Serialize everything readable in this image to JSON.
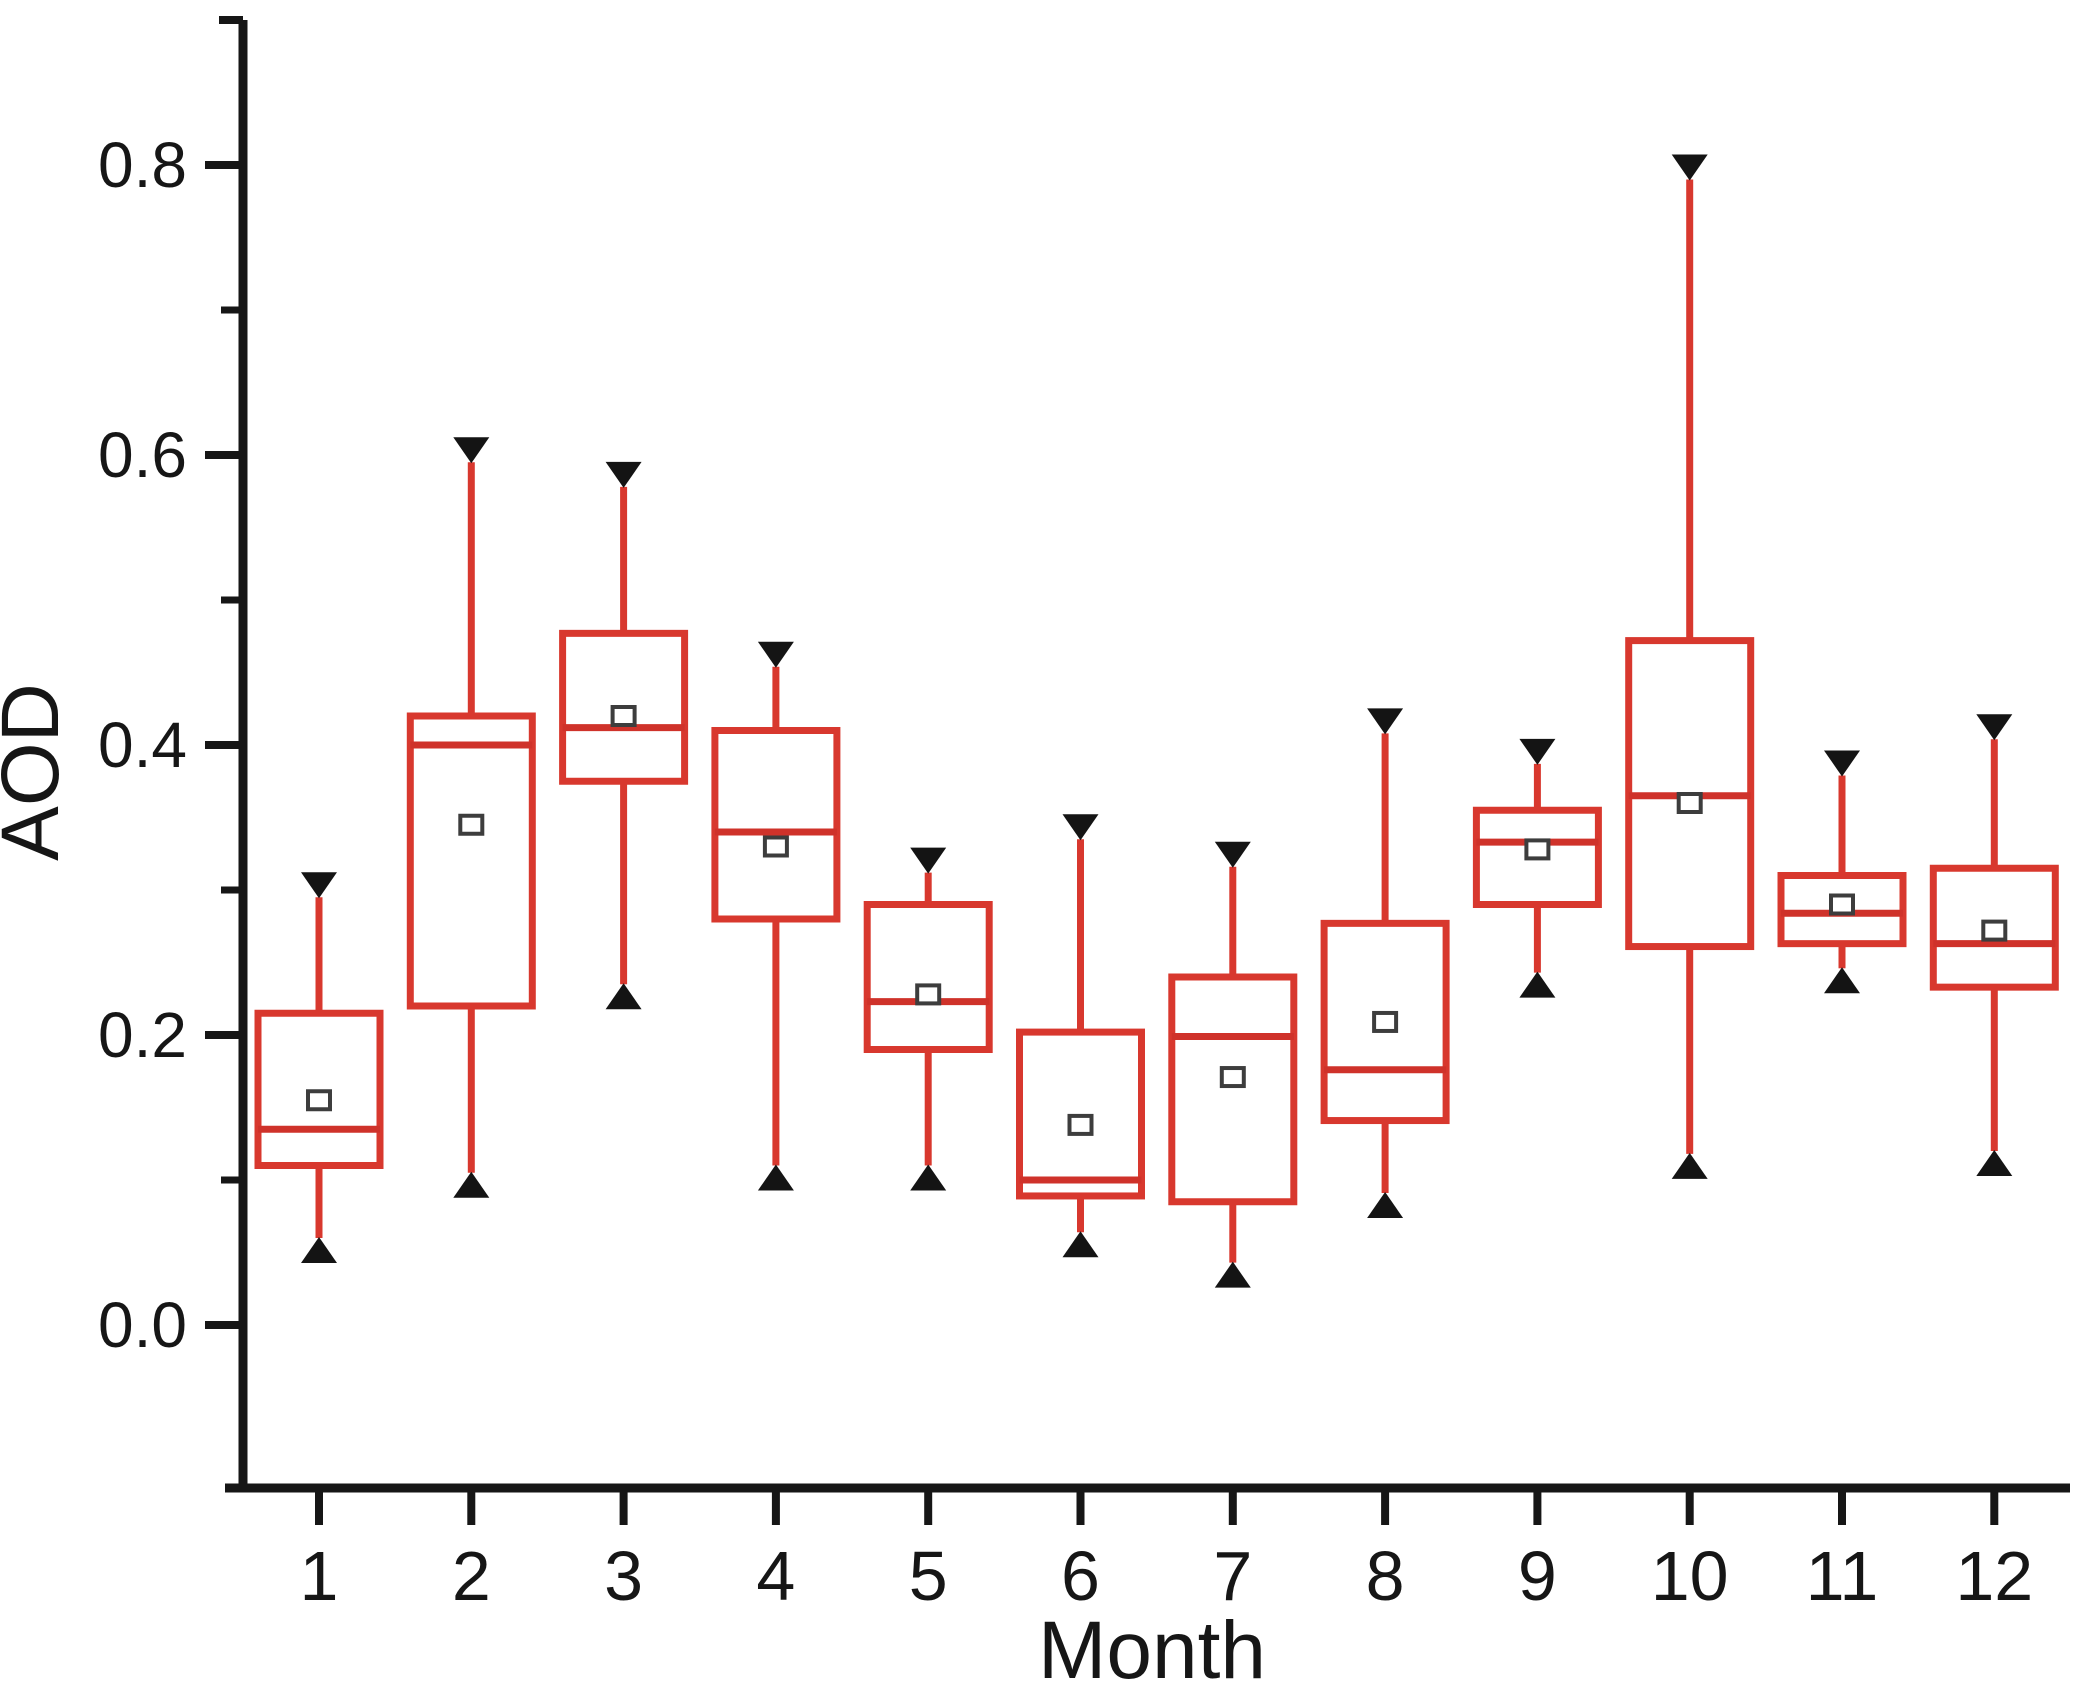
{
  "figure": {
    "kind": "boxplot-figure",
    "background": "#ffffff"
  },
  "axes": {
    "x_title": "Month",
    "y_title": "AOD",
    "y_tick_labels": [
      "0.0",
      "0.2",
      "0.4",
      "0.6",
      "0.8"
    ],
    "y_tick_values": [
      0.0,
      0.2,
      0.4,
      0.6,
      0.8
    ],
    "y_minor_tick_values": [
      0.1,
      0.3,
      0.5,
      0.7,
      0.9
    ],
    "x_tick_labels": [
      "1",
      "2",
      "3",
      "4",
      "5",
      "6",
      "7",
      "8",
      "9",
      "10",
      "11",
      "12"
    ]
  },
  "colors": {
    "box_stroke": "#d8382e",
    "whisker_stroke": "#d8382e",
    "median_stroke": "#cf322a",
    "axis_stroke": "#161616",
    "cap_triangle_fill": "#141414",
    "mean_marker_stroke": "#3d3d3d",
    "mean_marker_fill": "#ffffff",
    "text": "#161616"
  },
  "chart_data": {
    "type": "box",
    "title": "",
    "xlabel": "Month",
    "ylabel": "AOD",
    "categories": [
      "1",
      "2",
      "3",
      "4",
      "5",
      "6",
      "7",
      "8",
      "9",
      "10",
      "11",
      "12"
    ],
    "ylim": [
      -0.112,
      0.9
    ],
    "y_major_ticks": [
      0.0,
      0.2,
      0.4,
      0.6,
      0.8
    ],
    "y_minor_ticks": [
      0.1,
      0.3,
      0.5,
      0.7,
      0.9
    ],
    "grid": "off",
    "legend": "none",
    "whisker_caps": "filled-triangles",
    "mean_marker": "open-square",
    "series": [
      {
        "month": "1",
        "min": 0.06,
        "q1": 0.11,
        "median": 0.135,
        "mean": 0.155,
        "q3": 0.215,
        "max": 0.295
      },
      {
        "month": "2",
        "min": 0.105,
        "q1": 0.22,
        "median": 0.4,
        "mean": 0.345,
        "q3": 0.42,
        "max": 0.595
      },
      {
        "month": "3",
        "min": 0.235,
        "q1": 0.375,
        "median": 0.412,
        "mean": 0.42,
        "q3": 0.477,
        "max": 0.578
      },
      {
        "month": "4",
        "min": 0.11,
        "q1": 0.28,
        "median": 0.34,
        "mean": 0.33,
        "q3": 0.41,
        "max": 0.454
      },
      {
        "month": "5",
        "min": 0.11,
        "q1": 0.19,
        "median": 0.223,
        "mean": 0.228,
        "q3": 0.29,
        "max": 0.312
      },
      {
        "month": "6",
        "min": 0.064,
        "q1": 0.089,
        "median": 0.1,
        "mean": 0.138,
        "q3": 0.202,
        "max": 0.335
      },
      {
        "month": "7",
        "min": 0.043,
        "q1": 0.085,
        "median": 0.199,
        "mean": 0.171,
        "q3": 0.24,
        "max": 0.316
      },
      {
        "month": "8",
        "min": 0.091,
        "q1": 0.141,
        "median": 0.176,
        "mean": 0.209,
        "q3": 0.277,
        "max": 0.408
      },
      {
        "month": "9",
        "min": 0.243,
        "q1": 0.29,
        "median": 0.333,
        "mean": 0.328,
        "q3": 0.355,
        "max": 0.387
      },
      {
        "month": "10",
        "min": 0.118,
        "q1": 0.261,
        "median": 0.365,
        "mean": 0.36,
        "q3": 0.472,
        "max": 0.79
      },
      {
        "month": "11",
        "min": 0.246,
        "q1": 0.263,
        "median": 0.284,
        "mean": 0.29,
        "q3": 0.31,
        "max": 0.379
      },
      {
        "month": "12",
        "min": 0.12,
        "q1": 0.233,
        "median": 0.263,
        "mean": 0.272,
        "q3": 0.315,
        "max": 0.404
      }
    ]
  }
}
